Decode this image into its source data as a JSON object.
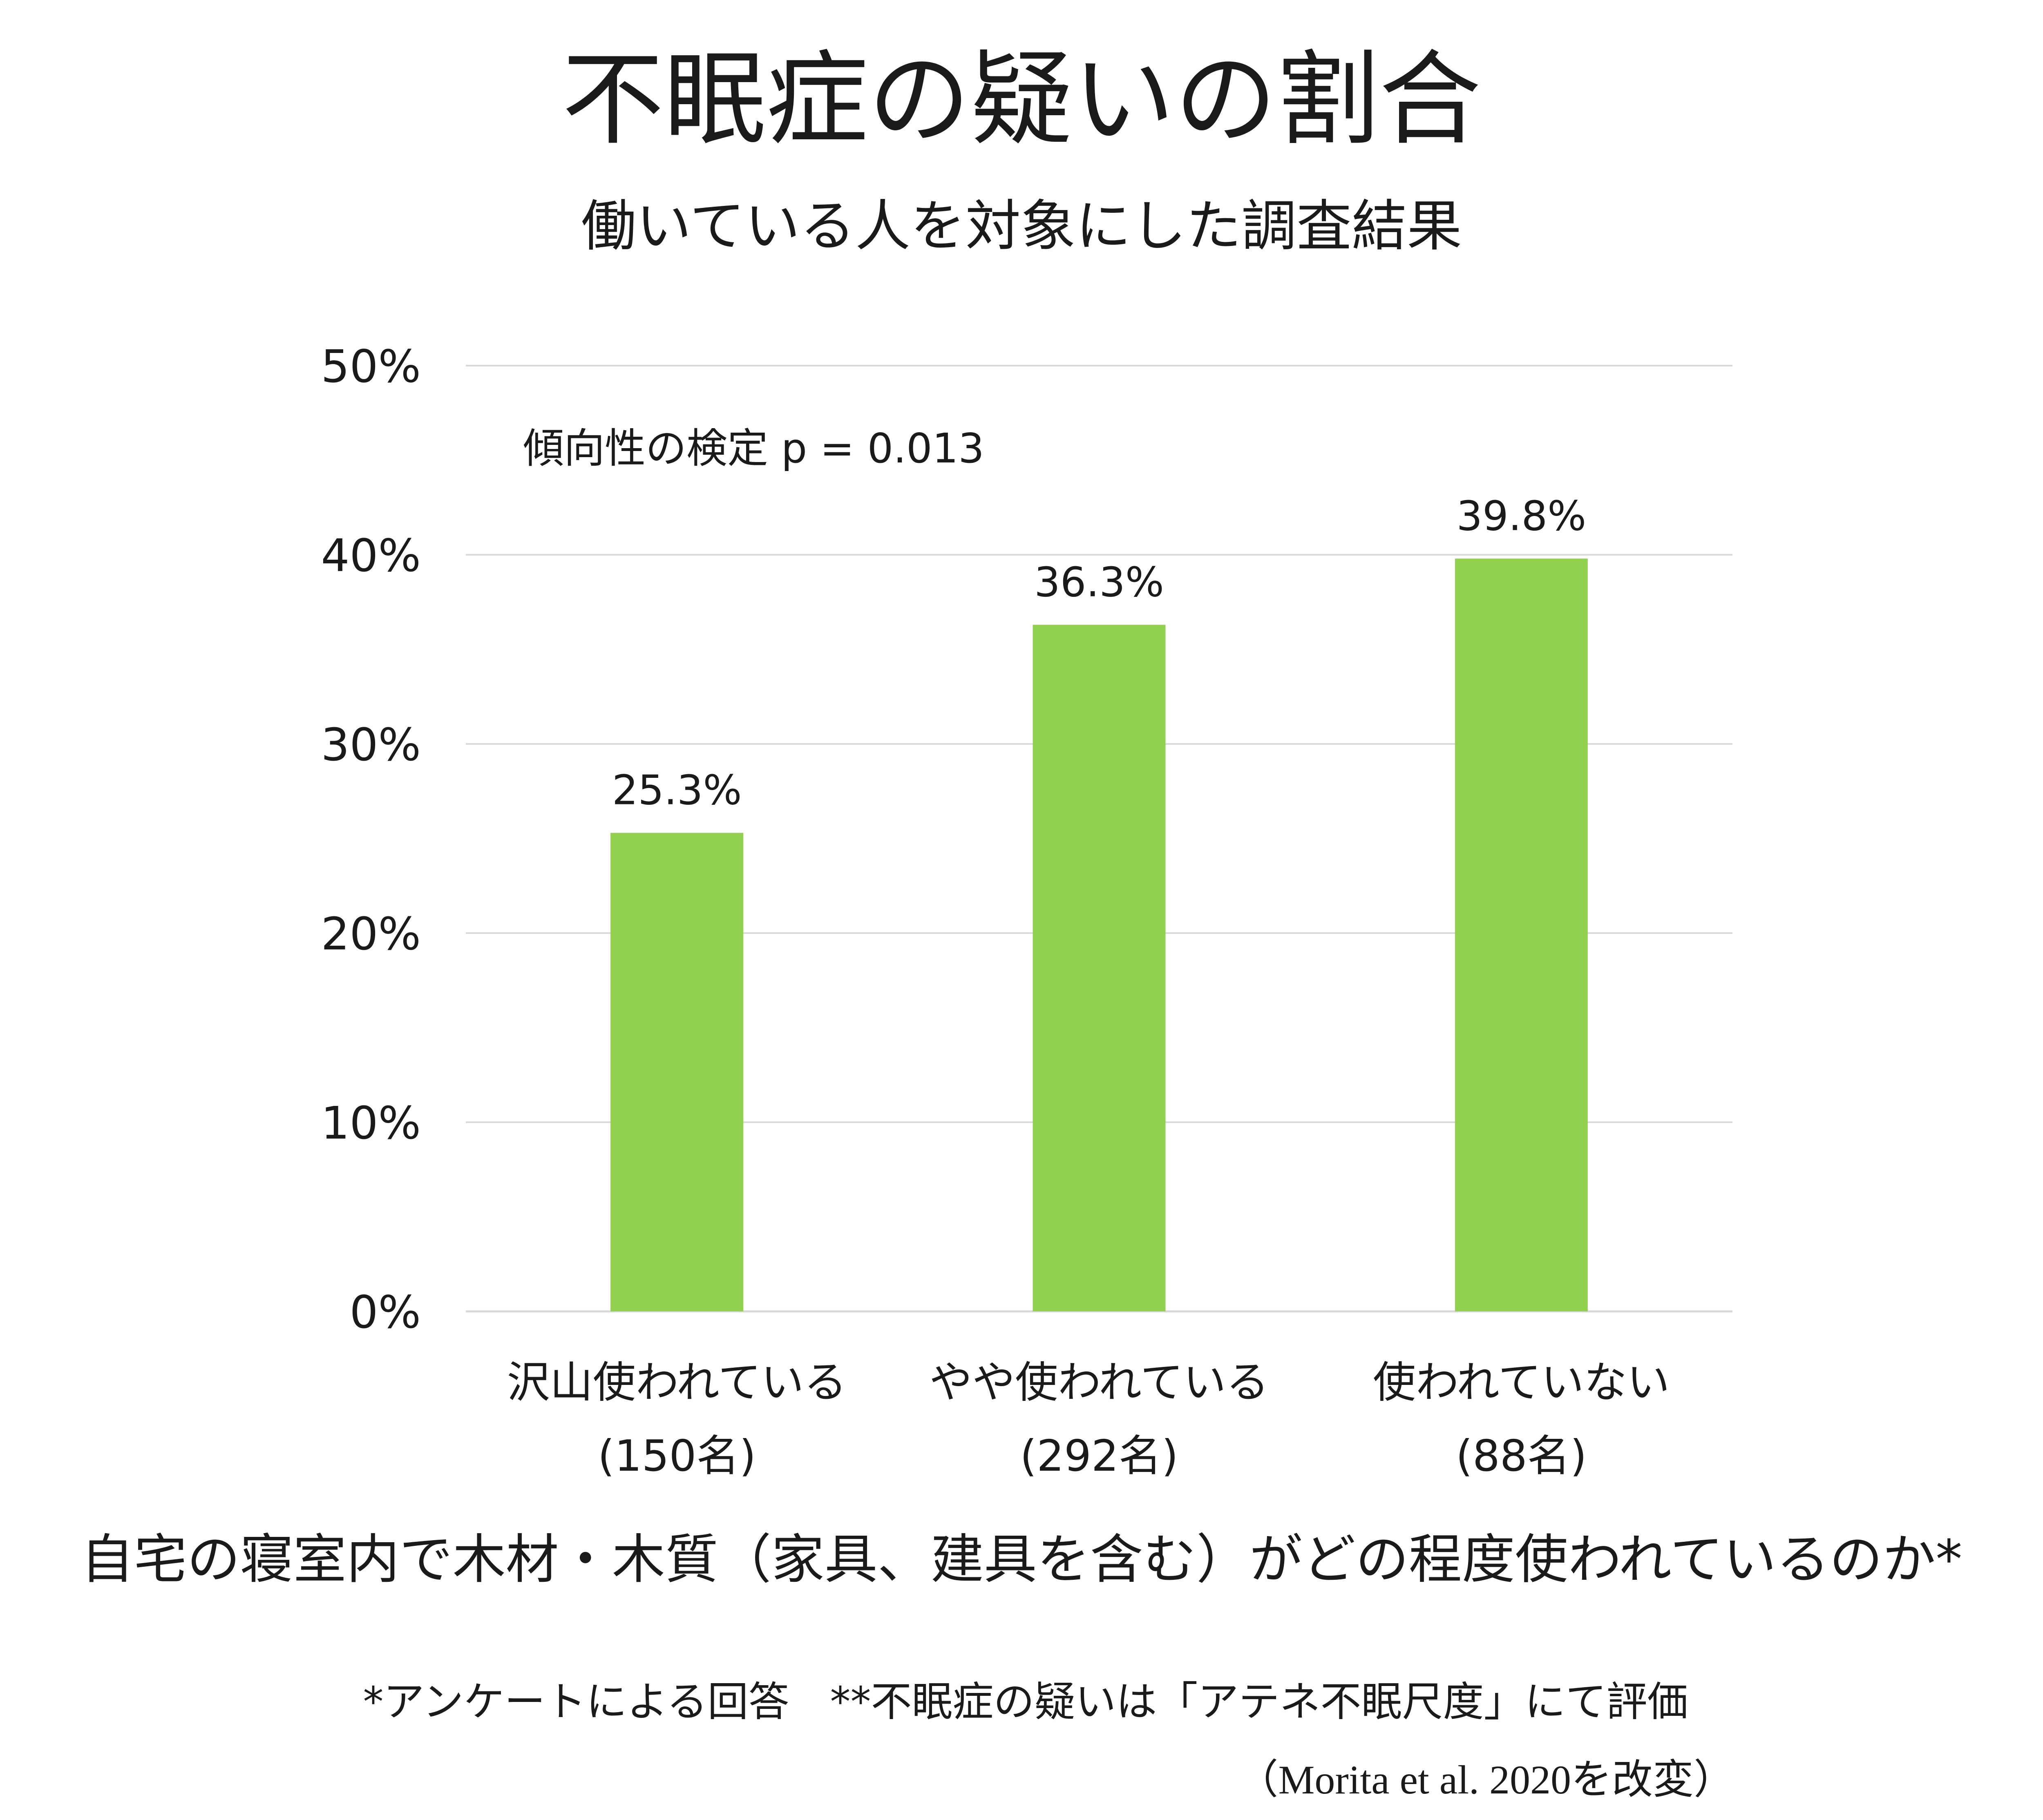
{
  "chart_data": {
    "type": "bar",
    "title": "不眠症の疑いの割合",
    "subtitle": "働いている人を対象にした調査結果",
    "annotation": "傾向性の検定 p = 0.013",
    "categories": [
      {
        "label": "沢山使われている",
        "n": "(150名)"
      },
      {
        "label": "やや使われている",
        "n": "(292名)"
      },
      {
        "label": "使われていない",
        "n": "(88名)"
      }
    ],
    "values": [
      25.3,
      36.3,
      39.8
    ],
    "value_labels": [
      "25.3%",
      "36.3%",
      "39.8%"
    ],
    "y_ticks": [
      "0%",
      "10%",
      "20%",
      "30%",
      "40%",
      "50%"
    ],
    "ylim": [
      0,
      50
    ],
    "grid": true,
    "xlabel": "自宅の寝室内で木材・木質（家具、建具を含む）がどの程度使われているのか*",
    "bar_color": "#92d050",
    "grid_color": "#d9d9d9"
  },
  "footnotes": {
    "note": "*アンケートによる回答　**不眠症の疑いは「アテネ不眠尺度」にて評価",
    "source": "（Morita et al. 2020を改変）"
  }
}
